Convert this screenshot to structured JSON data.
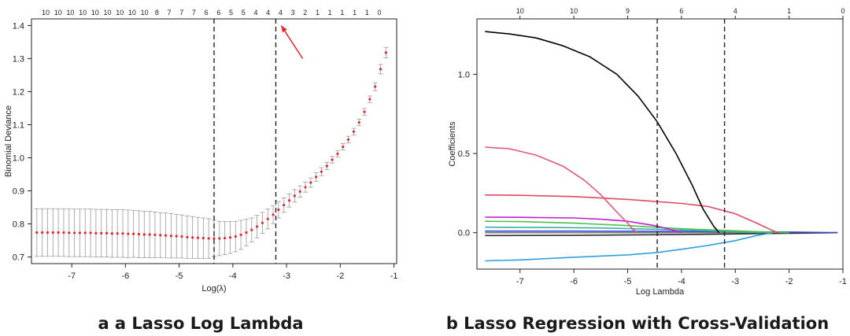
{
  "captions": {
    "left": "a a Lasso Log Lambda",
    "right": "b Lasso Regression with Cross-Validation"
  },
  "chart_data": [
    {
      "type": "scatter",
      "title": "",
      "xlabel": "Log(λ)",
      "ylabel": "Binomial Deviance",
      "xlim": [
        -7.75,
        -0.95
      ],
      "ylim": [
        0.68,
        1.42
      ],
      "x_ticks": [
        -7,
        -6,
        -5,
        -4,
        -3,
        -2,
        -1
      ],
      "y_ticks": [
        0.7,
        0.8,
        0.9,
        1.0,
        1.1,
        1.2,
        1.3,
        1.4
      ],
      "x_tick_labels": [
        "-7",
        "-6",
        "-5",
        "-4",
        "-3",
        "-2",
        "-1"
      ],
      "y_tick_labels": [
        "0.7",
        "0.8",
        "0.9",
        "1.0",
        "1.1",
        "1.2",
        "1.3",
        "1.4"
      ],
      "top_axis_labels": [
        "10",
        "10",
        "10",
        "10",
        "10",
        "10",
        "10",
        "10",
        "10",
        "8",
        "7",
        "7",
        "7",
        "6",
        "6",
        "5",
        "5",
        "4",
        "4",
        "4",
        "3",
        "2",
        "1",
        "1",
        "1",
        "1",
        "1",
        "0"
      ],
      "point_color": "#e8262b",
      "errorbar_color": "#9a9a9a",
      "vlines": [
        -4.35,
        -3.2
      ],
      "annotation": {
        "type": "arrow",
        "color": "#e8262b",
        "from": [
          -2.7,
          1.3
        ],
        "to": [
          -3.1,
          1.4
        ]
      },
      "series": [
        {
          "x": [
            -7.65,
            -7.55,
            -7.45,
            -7.35,
            -7.25,
            -7.15,
            -7.05,
            -6.95,
            -6.85,
            -6.75,
            -6.65,
            -6.55,
            -6.45,
            -6.35,
            -6.25,
            -6.15,
            -6.05,
            -5.95,
            -5.85,
            -5.75,
            -5.65,
            -5.55,
            -5.45,
            -5.35,
            -5.25,
            -5.15,
            -5.05,
            -4.95,
            -4.85,
            -4.75,
            -4.65,
            -4.55,
            -4.45,
            -4.35,
            -4.25,
            -4.15,
            -4.05,
            -3.95,
            -3.85,
            -3.75,
            -3.65,
            -3.55,
            -3.45,
            -3.35,
            -3.25,
            -3.15,
            -3.05,
            -2.95,
            -2.85,
            -2.75,
            -2.65,
            -2.55,
            -2.45,
            -2.35,
            -2.25,
            -2.15,
            -2.05,
            -1.95,
            -1.85,
            -1.75,
            -1.65,
            -1.55,
            -1.45,
            -1.35,
            -1.25,
            -1.15
          ],
          "y": [
            0.774,
            0.774,
            0.774,
            0.774,
            0.774,
            0.774,
            0.773,
            0.773,
            0.773,
            0.773,
            0.773,
            0.772,
            0.772,
            0.772,
            0.771,
            0.771,
            0.771,
            0.77,
            0.77,
            0.769,
            0.768,
            0.768,
            0.767,
            0.766,
            0.765,
            0.764,
            0.763,
            0.762,
            0.76,
            0.759,
            0.758,
            0.757,
            0.756,
            0.756,
            0.756,
            0.757,
            0.759,
            0.762,
            0.767,
            0.774,
            0.782,
            0.792,
            0.803,
            0.815,
            0.828,
            0.843,
            0.857,
            0.871,
            0.885,
            0.898,
            0.911,
            0.925,
            0.942,
            0.958,
            0.975,
            0.994,
            1.012,
            1.033,
            1.055,
            1.079,
            1.107,
            1.139,
            1.177,
            1.215,
            1.268,
            1.318
          ],
          "err": [
            0.072,
            0.072,
            0.072,
            0.072,
            0.072,
            0.072,
            0.072,
            0.072,
            0.072,
            0.072,
            0.072,
            0.072,
            0.072,
            0.072,
            0.072,
            0.072,
            0.072,
            0.072,
            0.071,
            0.071,
            0.07,
            0.07,
            0.069,
            0.068,
            0.068,
            0.067,
            0.066,
            0.065,
            0.064,
            0.063,
            0.062,
            0.061,
            0.06,
            0.055,
            0.052,
            0.05,
            0.048,
            0.046,
            0.044,
            0.04,
            0.036,
            0.034,
            0.032,
            0.03,
            0.027,
            0.025,
            0.022,
            0.02,
            0.019,
            0.017,
            0.015,
            0.014,
            0.013,
            0.012,
            0.011,
            0.01,
            0.01,
            0.01,
            0.01,
            0.01,
            0.01,
            0.01,
            0.01,
            0.012,
            0.014,
            0.016
          ]
        }
      ]
    },
    {
      "type": "line",
      "title": "",
      "xlabel": "Log Lambda",
      "ylabel": "Coefficients",
      "xlim": [
        -7.8,
        -1.0
      ],
      "ylim": [
        -0.23,
        1.35
      ],
      "x_ticks": [
        -7,
        -6,
        -5,
        -4,
        -3,
        -2,
        -1
      ],
      "y_ticks": [
        0.0,
        0.5,
        1.0
      ],
      "x_tick_labels": [
        "-7",
        "-6",
        "-5",
        "-4",
        "-3",
        "-2",
        "-1"
      ],
      "y_tick_labels": [
        "0.0",
        "0.5",
        "1.0"
      ],
      "top_axis": [
        {
          "x": -7.0,
          "label": "10"
        },
        {
          "x": -6.0,
          "label": "10"
        },
        {
          "x": -5.0,
          "label": "9"
        },
        {
          "x": -4.0,
          "label": "6"
        },
        {
          "x": -3.0,
          "label": "4"
        },
        {
          "x": -2.0,
          "label": "1"
        },
        {
          "x": -1.0,
          "label": "0"
        }
      ],
      "vlines": [
        -4.45,
        -3.2
      ],
      "series": [
        {
          "color": "#000000",
          "x": [
            -7.65,
            -7.2,
            -6.7,
            -6.2,
            -5.7,
            -5.2,
            -4.8,
            -4.45,
            -4.1,
            -3.8,
            -3.6,
            -3.4,
            -3.3
          ],
          "y": [
            1.27,
            1.255,
            1.23,
            1.18,
            1.11,
            1.0,
            0.86,
            0.7,
            0.5,
            0.3,
            0.15,
            0.04,
            0.0
          ]
        },
        {
          "color": "#e5567a",
          "x": [
            -7.65,
            -7.2,
            -6.7,
            -6.2,
            -5.8,
            -5.5,
            -5.2,
            -5.0,
            -4.9,
            -4.8
          ],
          "y": [
            0.54,
            0.53,
            0.49,
            0.42,
            0.33,
            0.24,
            0.13,
            0.06,
            0.02,
            0.0
          ]
        },
        {
          "color": "#df4a5f",
          "x": [
            -7.65,
            -7.0,
            -6.0,
            -5.0,
            -4.0,
            -3.5,
            -3.0,
            -2.6,
            -2.35,
            -2.2
          ],
          "y": [
            0.238,
            0.236,
            0.228,
            0.21,
            0.185,
            0.165,
            0.12,
            0.06,
            0.02,
            0.0
          ]
        },
        {
          "color": "#c21fd1",
          "x": [
            -7.65,
            -7.0,
            -6.0,
            -5.5,
            -5.0,
            -4.5,
            -4.2,
            -4.0
          ],
          "y": [
            0.098,
            0.097,
            0.093,
            0.085,
            0.072,
            0.045,
            0.02,
            0.0
          ]
        },
        {
          "color": "#4cc24c",
          "x": [
            -7.65,
            -7.0,
            -6.0,
            -5.0,
            -4.0,
            -3.0,
            -2.5,
            -2.0
          ],
          "y": [
            0.072,
            0.07,
            0.06,
            0.045,
            0.025,
            0.012,
            0.005,
            0.0
          ]
        },
        {
          "color": "#3ab0a8",
          "x": [
            -7.65,
            -6.5,
            -5.5,
            -4.5,
            -3.5,
            -3.0,
            -2.5
          ],
          "y": [
            0.035,
            0.033,
            0.03,
            0.022,
            0.012,
            0.005,
            0.0
          ]
        },
        {
          "color": "#2ea0e0",
          "x": [
            -7.65,
            -7.0,
            -6.0,
            -5.0,
            -4.45,
            -4.0,
            -3.5,
            -3.0,
            -2.6,
            -2.3
          ],
          "y": [
            -0.178,
            -0.172,
            -0.155,
            -0.14,
            -0.125,
            -0.105,
            -0.08,
            -0.05,
            -0.018,
            0.0
          ]
        },
        {
          "color": "#3b47d6",
          "x": [
            -7.65,
            -6.0,
            -4.0,
            -2.0,
            -1.1
          ],
          "y": [
            0.01,
            0.01,
            0.008,
            0.004,
            0.0
          ]
        },
        {
          "color": "#2d2d2d",
          "x": [
            -7.65,
            -6.0,
            -4.0,
            -2.0,
            -1.1
          ],
          "y": [
            -0.018,
            -0.017,
            -0.012,
            -0.004,
            0.0
          ]
        },
        {
          "color": "#7f7f7f",
          "x": [
            -7.65,
            -6.0,
            -4.0,
            -2.0,
            -1.1
          ],
          "y": [
            0.0,
            0.0,
            0.0,
            0.0,
            0.0
          ]
        }
      ]
    }
  ]
}
